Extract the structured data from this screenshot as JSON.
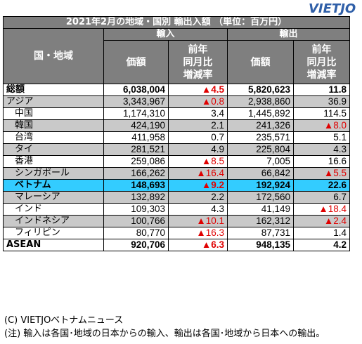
{
  "logo": "VIETJO",
  "table": {
    "title": "2021年2月の地域・国別 輸出入額 （単位：百万円）",
    "group_import": "輸入",
    "group_export": "輸出",
    "col_region": "国・地域",
    "col_value": "価額",
    "col_change": "前年\n同月比\n増減率",
    "rows": [
      {
        "region": "総額",
        "imp": "6,038,004",
        "imp_chg": "▲4.5",
        "exp": "5,820,623",
        "exp_chg": "11.8",
        "style": "bold"
      },
      {
        "region": "アジア",
        "imp": "3,343,967",
        "imp_chg": "▲0.8",
        "exp": "2,938,860",
        "exp_chg": "36.9",
        "style": "gray"
      },
      {
        "region": "中国",
        "imp": "1,174,310",
        "imp_chg": "3.4",
        "exp": "1,445,892",
        "exp_chg": "114.5",
        "style": "white"
      },
      {
        "region": "韓国",
        "imp": "424,190",
        "imp_chg": "2.1",
        "exp": "241,326",
        "exp_chg": "▲8.0",
        "style": "gray"
      },
      {
        "region": "台湾",
        "imp": "411,958",
        "imp_chg": "0.7",
        "exp": "235,571",
        "exp_chg": "5.1",
        "style": "white"
      },
      {
        "region": "タイ",
        "imp": "281,521",
        "imp_chg": "4.9",
        "exp": "225,804",
        "exp_chg": "4.3",
        "style": "gray"
      },
      {
        "region": "香港",
        "imp": "259,086",
        "imp_chg": "▲8.5",
        "exp": "7,005",
        "exp_chg": "16.6",
        "style": "white"
      },
      {
        "region": "シンガポール",
        "imp": "166,262",
        "imp_chg": "▲16.4",
        "exp": "66,842",
        "exp_chg": "▲5.5",
        "style": "gray"
      },
      {
        "region": "ベトナム",
        "imp": "148,693",
        "imp_chg": "▲9.2",
        "exp": "192,924",
        "exp_chg": "22.6",
        "style": "viet"
      },
      {
        "region": "マレーシア",
        "imp": "132,892",
        "imp_chg": "2.2",
        "exp": "172,560",
        "exp_chg": "6.7",
        "style": "gray"
      },
      {
        "region": "インド",
        "imp": "109,303",
        "imp_chg": "4.3",
        "exp": "41,149",
        "exp_chg": "▲18.4",
        "style": "white"
      },
      {
        "region": "インドネシア",
        "imp": "100,766",
        "imp_chg": "▲10.1",
        "exp": "162,312",
        "exp_chg": "▲2.4",
        "style": "gray"
      },
      {
        "region": "フィリピン",
        "imp": "80,770",
        "imp_chg": "▲16.3",
        "exp": "87,731",
        "exp_chg": "1.4",
        "style": "white"
      },
      {
        "region": "ASEAN",
        "imp": "920,706",
        "imp_chg": "▲6.3",
        "exp": "948,135",
        "exp_chg": "4.2",
        "style": "bold"
      }
    ]
  },
  "notes": {
    "credit": "(C) VIETJOベトナムニュース",
    "note": "(注) 輸入は各国･地域の日本からの輸入、輸出は各国･地域から日本への輸出。"
  },
  "colors": {
    "header": "#7f7f7f",
    "row_gray": "#c9c9c9",
    "vietnam_highlight": "#33ccff",
    "negative": "#e00000",
    "logo": "#2f5fa8"
  }
}
